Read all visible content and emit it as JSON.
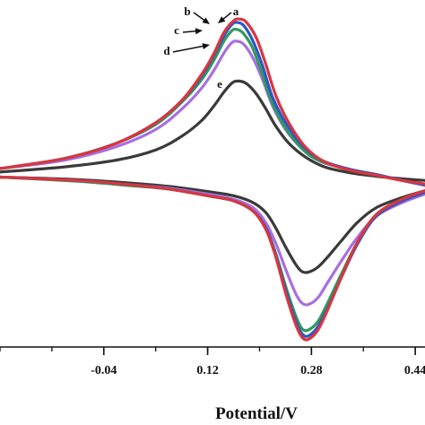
{
  "chart_data": {
    "type": "line",
    "xlabel": "Potential/V",
    "ylabel": "",
    "xlim": [
      -0.2,
      0.455
    ],
    "ylim": [
      -1.0,
      1.0
    ],
    "x_ticks": [
      -0.04,
      0.12,
      0.28,
      0.44
    ],
    "x_tick_labels": [
      "-0.04",
      "0.12",
      "0.28",
      "0.44"
    ],
    "grid": false,
    "legend": "none",
    "curve_labels": [
      "a",
      "b",
      "c",
      "d",
      "e"
    ],
    "series": [
      {
        "label": "a",
        "color": "#d9363e",
        "forward": [
          {
            "x": -0.2,
            "y": 0.05
          },
          {
            "x": -0.1,
            "y": 0.11
          },
          {
            "x": -0.02,
            "y": 0.2
          },
          {
            "x": 0.04,
            "y": 0.32
          },
          {
            "x": 0.08,
            "y": 0.45
          },
          {
            "x": 0.11,
            "y": 0.6
          },
          {
            "x": 0.13,
            "y": 0.73
          },
          {
            "x": 0.145,
            "y": 0.85
          },
          {
            "x": 0.16,
            "y": 0.92
          },
          {
            "x": 0.17,
            "y": 0.93
          },
          {
            "x": 0.18,
            "y": 0.91
          },
          {
            "x": 0.195,
            "y": 0.82
          },
          {
            "x": 0.21,
            "y": 0.66
          },
          {
            "x": 0.225,
            "y": 0.48
          },
          {
            "x": 0.245,
            "y": 0.32
          },
          {
            "x": 0.27,
            "y": 0.18
          },
          {
            "x": 0.3,
            "y": 0.09
          },
          {
            "x": 0.34,
            "y": 0.04
          },
          {
            "x": 0.38,
            "y": 0.01
          },
          {
            "x": 0.42,
            "y": -0.02
          },
          {
            "x": 0.455,
            "y": -0.04
          }
        ],
        "reverse": [
          {
            "x": 0.455,
            "y": -0.08
          },
          {
            "x": 0.42,
            "y": -0.13
          },
          {
            "x": 0.38,
            "y": -0.22
          },
          {
            "x": 0.35,
            "y": -0.39
          },
          {
            "x": 0.325,
            "y": -0.6
          },
          {
            "x": 0.305,
            "y": -0.78
          },
          {
            "x": 0.29,
            "y": -0.9
          },
          {
            "x": 0.275,
            "y": -0.955
          },
          {
            "x": 0.265,
            "y": -0.94
          },
          {
            "x": 0.255,
            "y": -0.86
          },
          {
            "x": 0.24,
            "y": -0.68
          },
          {
            "x": 0.225,
            "y": -0.47
          },
          {
            "x": 0.21,
            "y": -0.31
          },
          {
            "x": 0.19,
            "y": -0.2
          },
          {
            "x": 0.16,
            "y": -0.14
          },
          {
            "x": 0.12,
            "y": -0.11
          },
          {
            "x": 0.06,
            "y": -0.07
          },
          {
            "x": 0.0,
            "y": -0.045
          },
          {
            "x": -0.08,
            "y": -0.02
          },
          {
            "x": -0.2,
            "y": 0.0
          }
        ]
      },
      {
        "label": "b",
        "color": "#2e55c8",
        "forward": [
          {
            "x": -0.2,
            "y": 0.05
          },
          {
            "x": -0.1,
            "y": 0.11
          },
          {
            "x": -0.02,
            "y": 0.2
          },
          {
            "x": 0.04,
            "y": 0.32
          },
          {
            "x": 0.08,
            "y": 0.45
          },
          {
            "x": 0.11,
            "y": 0.59
          },
          {
            "x": 0.13,
            "y": 0.72
          },
          {
            "x": 0.145,
            "y": 0.83
          },
          {
            "x": 0.158,
            "y": 0.9
          },
          {
            "x": 0.166,
            "y": 0.91
          },
          {
            "x": 0.176,
            "y": 0.89
          },
          {
            "x": 0.19,
            "y": 0.8
          },
          {
            "x": 0.205,
            "y": 0.65
          },
          {
            "x": 0.22,
            "y": 0.47
          },
          {
            "x": 0.24,
            "y": 0.32
          },
          {
            "x": 0.265,
            "y": 0.19
          },
          {
            "x": 0.295,
            "y": 0.1
          },
          {
            "x": 0.34,
            "y": 0.045
          },
          {
            "x": 0.38,
            "y": 0.015
          },
          {
            "x": 0.42,
            "y": -0.02
          },
          {
            "x": 0.455,
            "y": -0.045
          }
        ],
        "reverse": [
          {
            "x": 0.455,
            "y": -0.09
          },
          {
            "x": 0.42,
            "y": -0.14
          },
          {
            "x": 0.38,
            "y": -0.23
          },
          {
            "x": 0.35,
            "y": -0.4
          },
          {
            "x": 0.325,
            "y": -0.6
          },
          {
            "x": 0.305,
            "y": -0.77
          },
          {
            "x": 0.29,
            "y": -0.88
          },
          {
            "x": 0.275,
            "y": -0.935
          },
          {
            "x": 0.265,
            "y": -0.92
          },
          {
            "x": 0.255,
            "y": -0.84
          },
          {
            "x": 0.24,
            "y": -0.66
          },
          {
            "x": 0.225,
            "y": -0.46
          },
          {
            "x": 0.21,
            "y": -0.3
          },
          {
            "x": 0.19,
            "y": -0.2
          },
          {
            "x": 0.16,
            "y": -0.14
          },
          {
            "x": 0.12,
            "y": -0.11
          },
          {
            "x": 0.06,
            "y": -0.07
          },
          {
            "x": 0.0,
            "y": -0.045
          },
          {
            "x": -0.08,
            "y": -0.02
          },
          {
            "x": -0.2,
            "y": 0.0
          }
        ]
      },
      {
        "label": "c",
        "color": "#2f9a5c",
        "forward": [
          {
            "x": -0.2,
            "y": 0.05
          },
          {
            "x": -0.1,
            "y": 0.11
          },
          {
            "x": -0.02,
            "y": 0.2
          },
          {
            "x": 0.04,
            "y": 0.31
          },
          {
            "x": 0.08,
            "y": 0.44
          },
          {
            "x": 0.11,
            "y": 0.57
          },
          {
            "x": 0.13,
            "y": 0.69
          },
          {
            "x": 0.145,
            "y": 0.8
          },
          {
            "x": 0.157,
            "y": 0.86
          },
          {
            "x": 0.164,
            "y": 0.87
          },
          {
            "x": 0.174,
            "y": 0.85
          },
          {
            "x": 0.188,
            "y": 0.77
          },
          {
            "x": 0.203,
            "y": 0.62
          },
          {
            "x": 0.218,
            "y": 0.45
          },
          {
            "x": 0.238,
            "y": 0.3
          },
          {
            "x": 0.262,
            "y": 0.18
          },
          {
            "x": 0.29,
            "y": 0.1
          },
          {
            "x": 0.34,
            "y": 0.045
          },
          {
            "x": 0.38,
            "y": 0.015
          },
          {
            "x": 0.42,
            "y": -0.02
          },
          {
            "x": 0.455,
            "y": -0.045
          }
        ],
        "reverse": [
          {
            "x": 0.455,
            "y": -0.09
          },
          {
            "x": 0.42,
            "y": -0.14
          },
          {
            "x": 0.38,
            "y": -0.23
          },
          {
            "x": 0.35,
            "y": -0.39
          },
          {
            "x": 0.325,
            "y": -0.58
          },
          {
            "x": 0.305,
            "y": -0.74
          },
          {
            "x": 0.29,
            "y": -0.85
          },
          {
            "x": 0.275,
            "y": -0.9
          },
          {
            "x": 0.265,
            "y": -0.89
          },
          {
            "x": 0.255,
            "y": -0.81
          },
          {
            "x": 0.24,
            "y": -0.64
          },
          {
            "x": 0.225,
            "y": -0.45
          },
          {
            "x": 0.21,
            "y": -0.3
          },
          {
            "x": 0.19,
            "y": -0.2
          },
          {
            "x": 0.16,
            "y": -0.14
          },
          {
            "x": 0.12,
            "y": -0.11
          },
          {
            "x": 0.06,
            "y": -0.07
          },
          {
            "x": 0.0,
            "y": -0.05
          },
          {
            "x": -0.08,
            "y": -0.025
          },
          {
            "x": -0.2,
            "y": 0.0
          }
        ]
      },
      {
        "label": "d",
        "color": "#a86ee0",
        "forward": [
          {
            "x": -0.2,
            "y": 0.05
          },
          {
            "x": -0.1,
            "y": 0.1
          },
          {
            "x": -0.02,
            "y": 0.18
          },
          {
            "x": 0.04,
            "y": 0.28
          },
          {
            "x": 0.08,
            "y": 0.4
          },
          {
            "x": 0.11,
            "y": 0.52
          },
          {
            "x": 0.13,
            "y": 0.63
          },
          {
            "x": 0.145,
            "y": 0.73
          },
          {
            "x": 0.157,
            "y": 0.79
          },
          {
            "x": 0.165,
            "y": 0.8
          },
          {
            "x": 0.176,
            "y": 0.78
          },
          {
            "x": 0.19,
            "y": 0.7
          },
          {
            "x": 0.205,
            "y": 0.57
          },
          {
            "x": 0.22,
            "y": 0.42
          },
          {
            "x": 0.24,
            "y": 0.28
          },
          {
            "x": 0.265,
            "y": 0.17
          },
          {
            "x": 0.295,
            "y": 0.09
          },
          {
            "x": 0.34,
            "y": 0.045
          },
          {
            "x": 0.38,
            "y": 0.015
          },
          {
            "x": 0.42,
            "y": -0.02
          },
          {
            "x": 0.455,
            "y": -0.05
          }
        ],
        "reverse": [
          {
            "x": 0.455,
            "y": -0.1
          },
          {
            "x": 0.42,
            "y": -0.15
          },
          {
            "x": 0.38,
            "y": -0.23
          },
          {
            "x": 0.35,
            "y": -0.36
          },
          {
            "x": 0.325,
            "y": -0.5
          },
          {
            "x": 0.305,
            "y": -0.62
          },
          {
            "x": 0.29,
            "y": -0.71
          },
          {
            "x": 0.275,
            "y": -0.75
          },
          {
            "x": 0.265,
            "y": -0.74
          },
          {
            "x": 0.255,
            "y": -0.68
          },
          {
            "x": 0.24,
            "y": -0.54
          },
          {
            "x": 0.225,
            "y": -0.39
          },
          {
            "x": 0.21,
            "y": -0.27
          },
          {
            "x": 0.19,
            "y": -0.18
          },
          {
            "x": 0.16,
            "y": -0.13
          },
          {
            "x": 0.12,
            "y": -0.1
          },
          {
            "x": 0.06,
            "y": -0.065
          },
          {
            "x": 0.0,
            "y": -0.045
          },
          {
            "x": -0.08,
            "y": -0.02
          },
          {
            "x": -0.2,
            "y": 0.0
          }
        ]
      },
      {
        "label": "e",
        "color": "#3a3a3a",
        "forward": [
          {
            "x": -0.2,
            "y": 0.03
          },
          {
            "x": -0.1,
            "y": 0.06
          },
          {
            "x": -0.02,
            "y": 0.1
          },
          {
            "x": 0.04,
            "y": 0.16
          },
          {
            "x": 0.08,
            "y": 0.24
          },
          {
            "x": 0.11,
            "y": 0.33
          },
          {
            "x": 0.13,
            "y": 0.42
          },
          {
            "x": 0.145,
            "y": 0.5
          },
          {
            "x": 0.158,
            "y": 0.555
          },
          {
            "x": 0.168,
            "y": 0.565
          },
          {
            "x": 0.18,
            "y": 0.55
          },
          {
            "x": 0.195,
            "y": 0.49
          },
          {
            "x": 0.21,
            "y": 0.4
          },
          {
            "x": 0.225,
            "y": 0.3
          },
          {
            "x": 0.245,
            "y": 0.2
          },
          {
            "x": 0.27,
            "y": 0.12
          },
          {
            "x": 0.3,
            "y": 0.06
          },
          {
            "x": 0.34,
            "y": 0.025
          },
          {
            "x": 0.38,
            "y": 0.005
          },
          {
            "x": 0.42,
            "y": -0.01
          },
          {
            "x": 0.455,
            "y": -0.02
          }
        ],
        "reverse": [
          {
            "x": 0.455,
            "y": -0.08
          },
          {
            "x": 0.42,
            "y": -0.12
          },
          {
            "x": 0.38,
            "y": -0.18
          },
          {
            "x": 0.35,
            "y": -0.27
          },
          {
            "x": 0.325,
            "y": -0.38
          },
          {
            "x": 0.305,
            "y": -0.47
          },
          {
            "x": 0.29,
            "y": -0.53
          },
          {
            "x": 0.275,
            "y": -0.56
          },
          {
            "x": 0.265,
            "y": -0.555
          },
          {
            "x": 0.255,
            "y": -0.51
          },
          {
            "x": 0.24,
            "y": -0.41
          },
          {
            "x": 0.225,
            "y": -0.3
          },
          {
            "x": 0.21,
            "y": -0.21
          },
          {
            "x": 0.19,
            "y": -0.15
          },
          {
            "x": 0.16,
            "y": -0.11
          },
          {
            "x": 0.12,
            "y": -0.085
          },
          {
            "x": 0.06,
            "y": -0.055
          },
          {
            "x": 0.0,
            "y": -0.035
          },
          {
            "x": -0.08,
            "y": -0.015
          },
          {
            "x": -0.2,
            "y": 0.0
          }
        ]
      }
    ]
  }
}
